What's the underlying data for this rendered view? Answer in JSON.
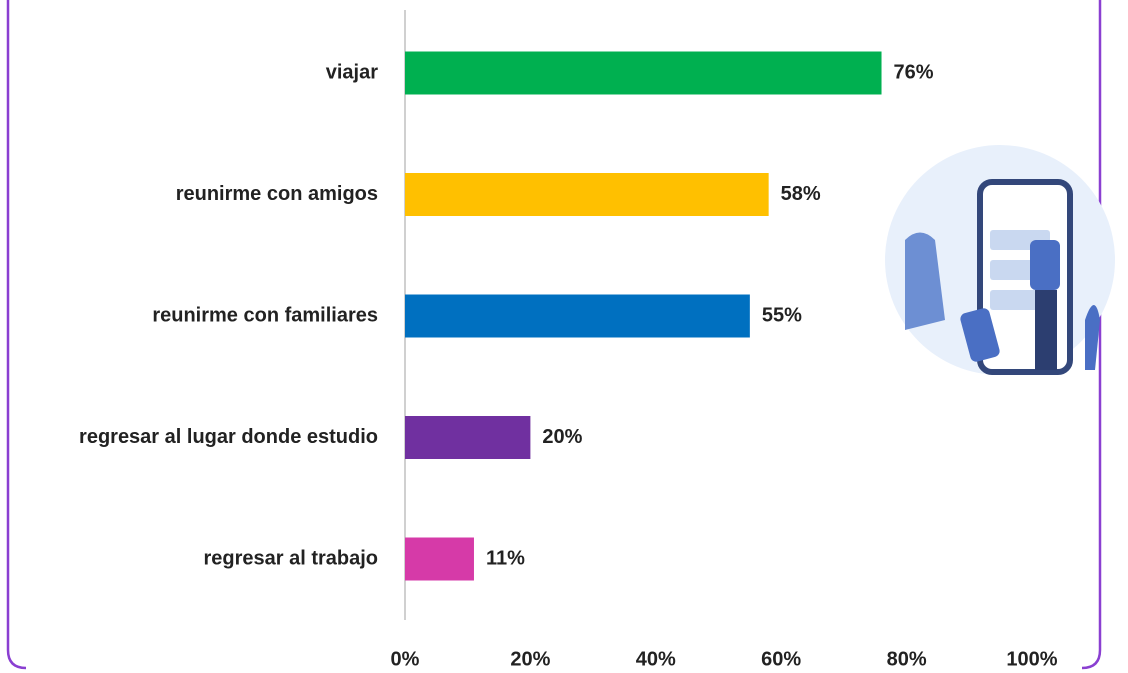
{
  "chart_data": {
    "type": "hbar",
    "categories": [
      "viajar",
      "reunirme con amigos",
      "reunirme con familiares",
      "regresar al lugar donde estudio",
      "regresar al trabajo"
    ],
    "values": [
      76,
      58,
      55,
      20,
      11
    ],
    "value_labels": [
      "76%",
      "58%",
      "55%",
      "20%",
      "11%"
    ],
    "colors": [
      "#00b050",
      "#ffc000",
      "#0070c0",
      "#7030a0",
      "#d63aa8"
    ],
    "xlim": [
      0,
      100
    ],
    "xticks": [
      {
        "value": 0,
        "label": "0%"
      },
      {
        "value": 20,
        "label": "20%"
      },
      {
        "value": 40,
        "label": "40%"
      },
      {
        "value": 60,
        "label": "60%"
      },
      {
        "value": 80,
        "label": "80%"
      },
      {
        "value": 100,
        "label": "100%"
      }
    ]
  }
}
